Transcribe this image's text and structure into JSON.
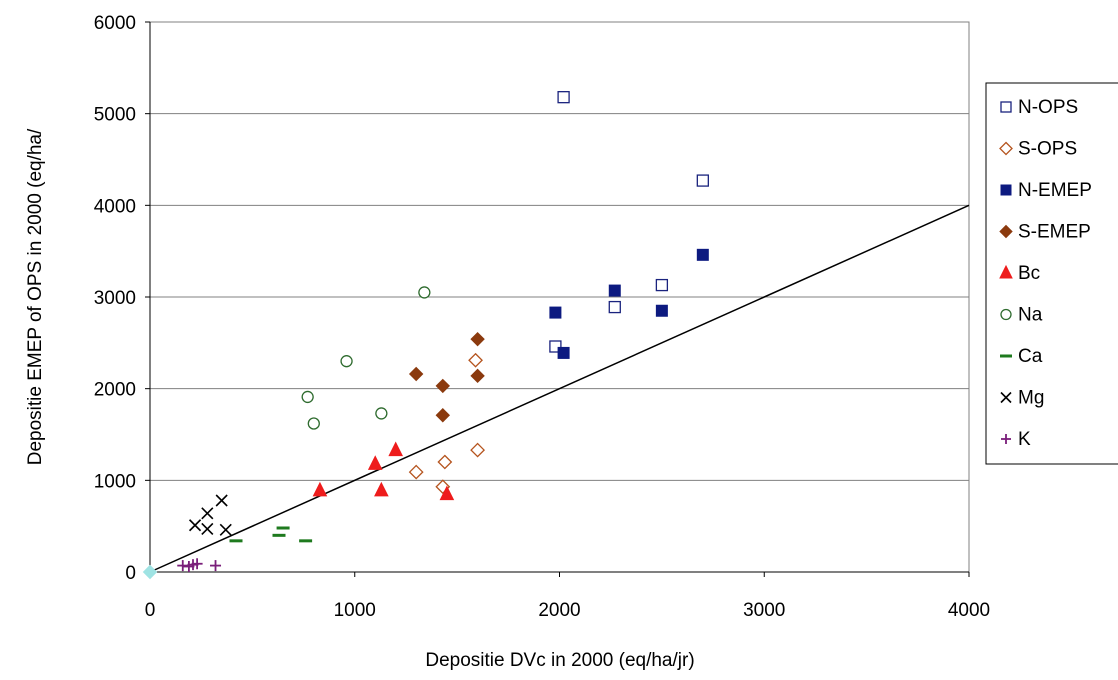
{
  "chart_data": {
    "type": "scatter",
    "title": "",
    "xlabel": "Depositie DVc in 2000 (eq/ha/jr)",
    "ylabel": "Depositie EMEP of OPS in 2000 (eq/ha/",
    "xlim": [
      0,
      4000
    ],
    "ylim": [
      0,
      6000
    ],
    "xticks": [
      0,
      1000,
      2000,
      3000,
      4000
    ],
    "yticks": [
      0,
      1000,
      2000,
      3000,
      4000,
      5000,
      6000
    ],
    "grid": "horizontal major gridlines",
    "legend_position": "right",
    "reference_line": {
      "points": [
        [
          0,
          0
        ],
        [
          4000,
          4000
        ]
      ],
      "color": "#000000"
    },
    "series": [
      {
        "name": "N-OPS",
        "marker": "square-open",
        "color": "#1a237e",
        "points": [
          [
            2020,
            5180
          ],
          [
            2700,
            4270
          ],
          [
            2500,
            3130
          ],
          [
            2270,
            2890
          ],
          [
            1980,
            2460
          ]
        ]
      },
      {
        "name": "S-OPS",
        "marker": "diamond-open",
        "color": "#b5541e",
        "points": [
          [
            1590,
            2310
          ],
          [
            1600,
            1330
          ],
          [
            1440,
            1200
          ],
          [
            1300,
            1090
          ],
          [
            1430,
            930
          ]
        ]
      },
      {
        "name": "N-EMEP",
        "marker": "square-filled",
        "color": "#0d1a80",
        "points": [
          [
            2700,
            3460
          ],
          [
            2270,
            3070
          ],
          [
            2500,
            2850
          ],
          [
            1980,
            2830
          ],
          [
            2020,
            2390
          ]
        ]
      },
      {
        "name": "S-EMEP",
        "marker": "diamond-filled",
        "color": "#8b3a0e",
        "points": [
          [
            1600,
            2540
          ],
          [
            1300,
            2160
          ],
          [
            1600,
            2140
          ],
          [
            1430,
            2030
          ],
          [
            1430,
            1710
          ]
        ]
      },
      {
        "name": "Bc",
        "marker": "triangle-filled",
        "color": "#ee1c1c",
        "points": [
          [
            1200,
            1330
          ],
          [
            1100,
            1180
          ],
          [
            830,
            890
          ],
          [
            1130,
            890
          ],
          [
            1450,
            850
          ]
        ]
      },
      {
        "name": "Na",
        "marker": "circle-open",
        "color": "#2e6b2e",
        "points": [
          [
            1340,
            3050
          ],
          [
            960,
            2300
          ],
          [
            770,
            1910
          ],
          [
            800,
            1620
          ],
          [
            1130,
            1730
          ]
        ]
      },
      {
        "name": "Ca",
        "marker": "dash",
        "color": "#1e7a1e",
        "points": [
          [
            650,
            480
          ],
          [
            630,
            400
          ],
          [
            420,
            340
          ],
          [
            760,
            340
          ]
        ]
      },
      {
        "name": "Mg",
        "marker": "x",
        "color": "#000000",
        "points": [
          [
            350,
            780
          ],
          [
            280,
            640
          ],
          [
            220,
            510
          ],
          [
            280,
            470
          ],
          [
            370,
            460
          ]
        ]
      },
      {
        "name": "K",
        "marker": "plus",
        "color": "#7a1e7a",
        "points": [
          [
            160,
            70
          ],
          [
            210,
            80
          ],
          [
            230,
            90
          ],
          [
            320,
            70
          ],
          [
            190,
            60
          ]
        ]
      }
    ],
    "extra_points": [
      {
        "marker": "diamond-filled",
        "color": "#9fe3e3",
        "points": [
          [
            0,
            0
          ]
        ]
      }
    ]
  }
}
